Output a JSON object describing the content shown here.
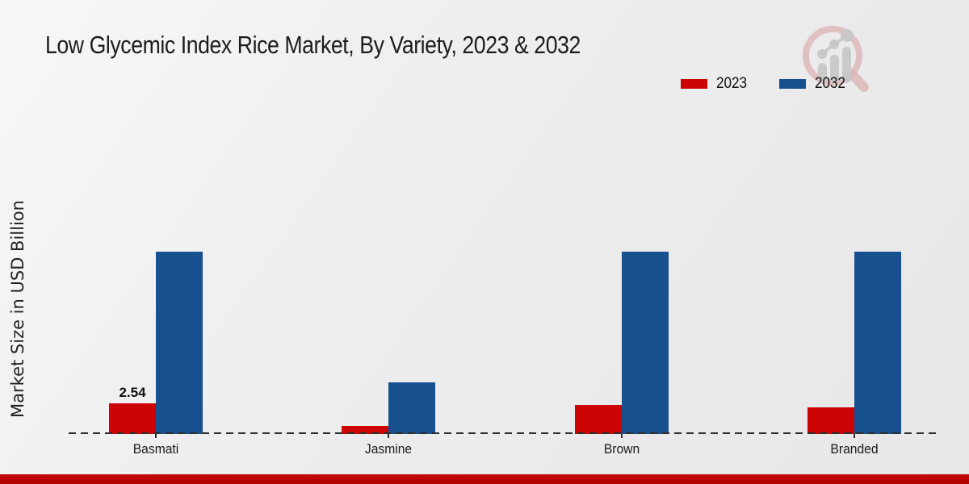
{
  "title": "Low Glycemic Index Rice Market, By Variety, 2023 & 2032",
  "y_axis_label": "Market Size in USD Billion",
  "legend": {
    "position": "top-right",
    "items": [
      {
        "label": "2023",
        "color": "#cc0404"
      },
      {
        "label": "2032",
        "color": "#17508f"
      }
    ]
  },
  "colors": {
    "series_2023": "#cc0404",
    "series_2032": "#17508f",
    "footer_bar": "#c00404",
    "background": "#ececec",
    "axis_line": "#2e2e2e",
    "text": "#1a1a1a"
  },
  "watermark_icon": "magnifier-bar-chart-logo",
  "chart_data": {
    "type": "bar",
    "categories": [
      "Basmati",
      "Jasmine",
      "Brown",
      "Branded"
    ],
    "series": [
      {
        "name": "2023",
        "color": "#cc0404",
        "values": [
          2.54,
          0.7,
          2.45,
          2.25
        ],
        "labels": [
          "2.54",
          "",
          "",
          ""
        ]
      },
      {
        "name": "2032",
        "color": "#17508f",
        "values": [
          15.3,
          4.3,
          15.3,
          15.3
        ],
        "labels": [
          "",
          "",
          "",
          ""
        ]
      }
    ],
    "title": "Low Glycemic Index Rice Market, By Variety, 2023 & 2032",
    "xlabel": "",
    "ylabel": "Market Size in USD Billion",
    "ylim": [
      0,
      17
    ],
    "grid": false,
    "baseline_style": "dashed",
    "legend_position": "top-right",
    "only_labeled_point": "Basmati 2023 = 2.54"
  }
}
